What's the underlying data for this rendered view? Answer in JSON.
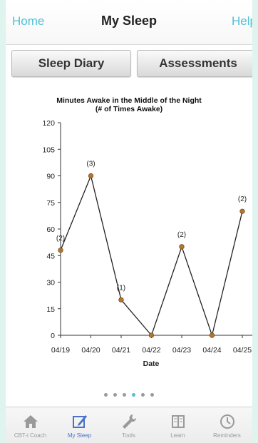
{
  "nav": {
    "left": "Home",
    "title": "My Sleep",
    "right": "Help"
  },
  "segments": {
    "a": "Sleep Diary",
    "b": "Assessments"
  },
  "chart_data": {
    "type": "line",
    "title": "Minutes Awake in the Middle of the Night",
    "subtitle": "(# of Times Awake)",
    "xlabel": "Date",
    "ylabel": "",
    "categories": [
      "04/19",
      "04/20",
      "04/21",
      "04/22",
      "04/23",
      "04/24",
      "04/25"
    ],
    "values": [
      48,
      90,
      20,
      0,
      50,
      0,
      70
    ],
    "point_labels": [
      "(2)",
      "(3)",
      "(1)",
      "",
      "(2)",
      "",
      "(2)"
    ],
    "ylim": [
      0,
      120
    ],
    "yticks": [
      0,
      15,
      30,
      45,
      60,
      75,
      90,
      105,
      120
    ],
    "grid": false,
    "colors": {
      "line": "#222222",
      "point": "#b8742a"
    }
  },
  "pager": {
    "count": 6,
    "active": 3
  },
  "tabs": [
    {
      "label": "CBT-i Coach",
      "icon": "home-icon"
    },
    {
      "label": "My Sleep",
      "icon": "edit-icon"
    },
    {
      "label": "Tools",
      "icon": "wrench-icon"
    },
    {
      "label": "Learn",
      "icon": "book-icon"
    },
    {
      "label": "Reminders",
      "icon": "clock-icon"
    }
  ]
}
